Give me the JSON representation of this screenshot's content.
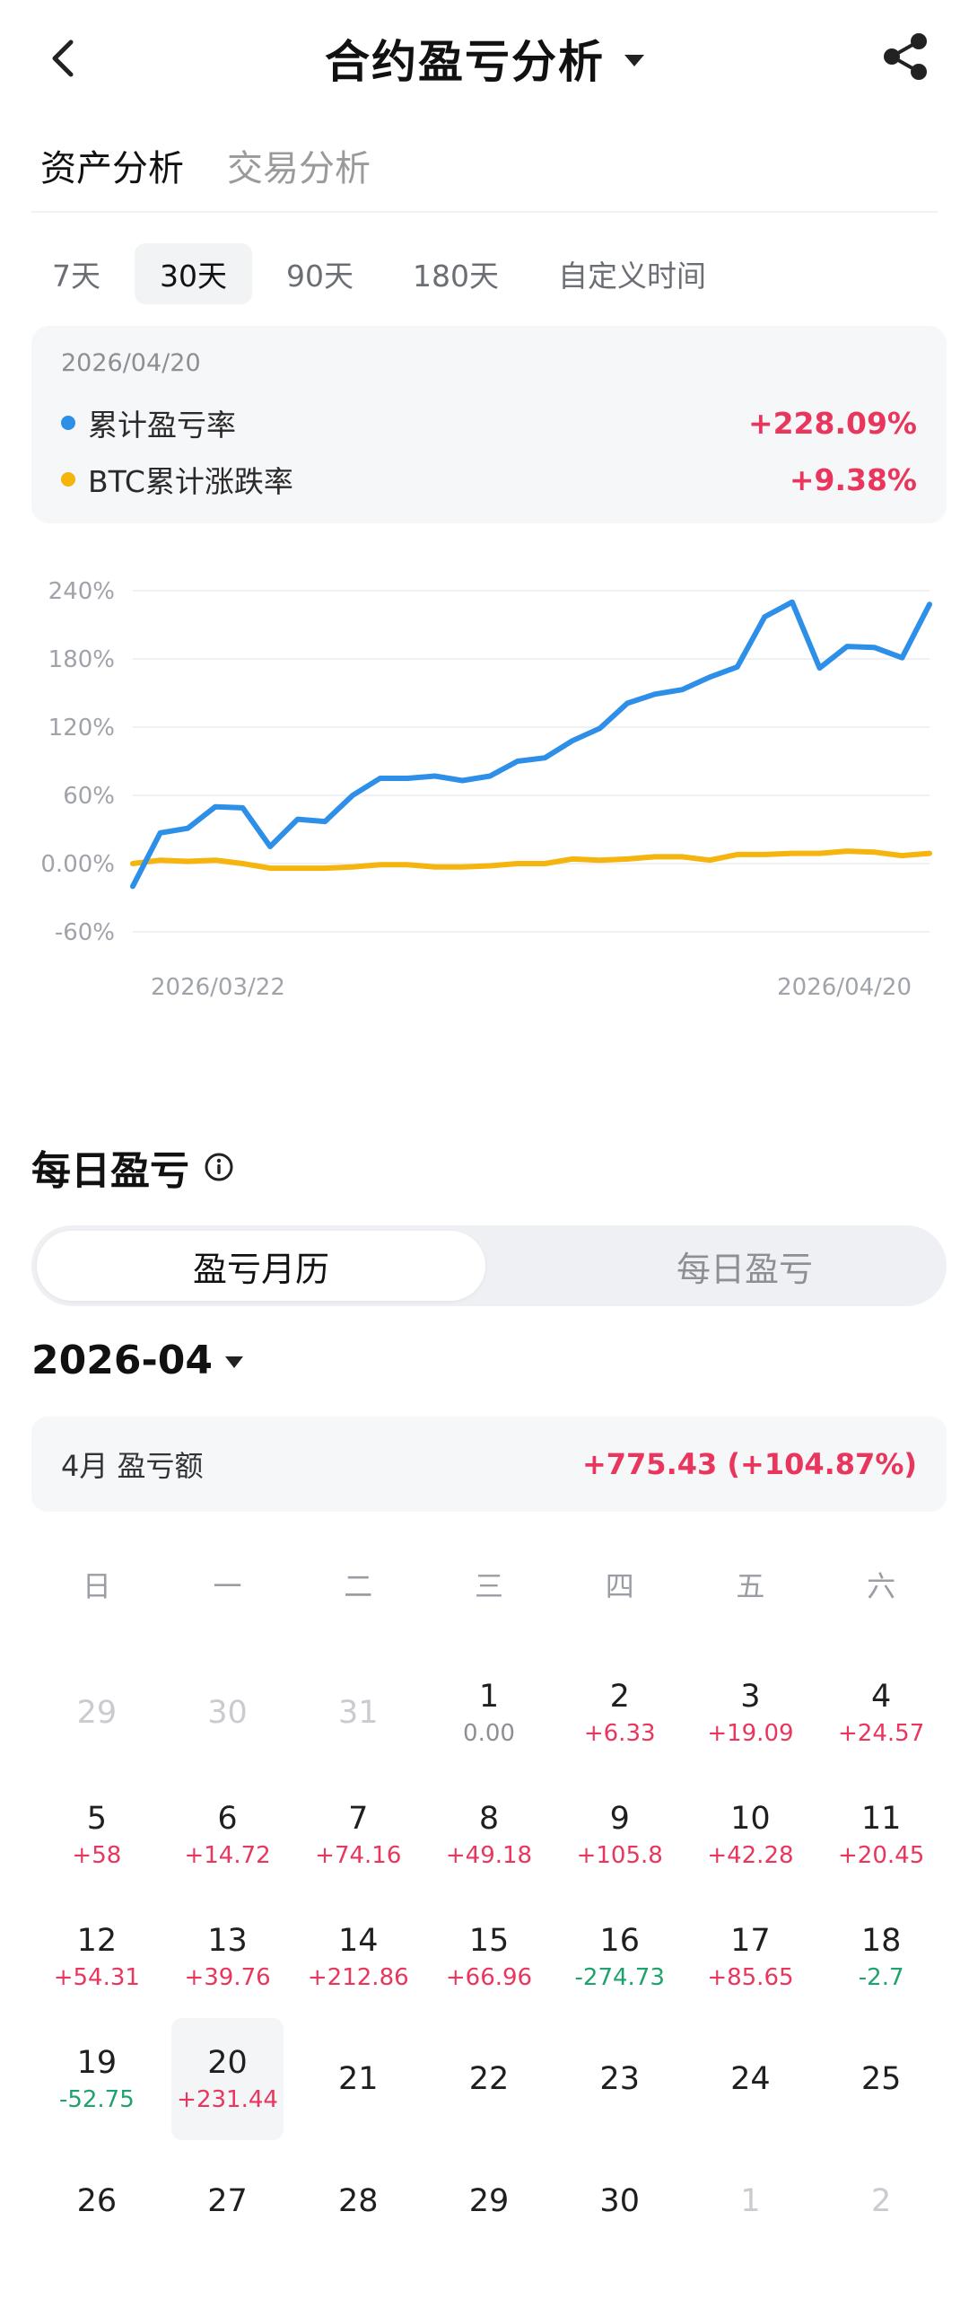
{
  "header": {
    "title": "合约盈亏分析"
  },
  "analysis_tabs": [
    {
      "label": "资产分析",
      "active": true
    },
    {
      "label": "交易分析",
      "active": false
    }
  ],
  "period_tabs": [
    {
      "label": "7天",
      "active": false
    },
    {
      "label": "30天",
      "active": true
    },
    {
      "label": "90天",
      "active": false
    },
    {
      "label": "180天",
      "active": false
    },
    {
      "label": "自定义时间",
      "active": false
    }
  ],
  "summary": {
    "date": "2026/04/20",
    "rows": [
      {
        "label": "累计盈亏率",
        "value": "+228.09%",
        "color": "#2e8fe8"
      },
      {
        "label": "BTC累计涨跌率",
        "value": "+9.38%",
        "color": "#f5b40e"
      }
    ]
  },
  "chart_data": {
    "type": "line",
    "y_ticks": [
      "240%",
      "180%",
      "120%",
      "60%",
      "0.00%",
      "-60%"
    ],
    "ylim": [
      -60,
      240
    ],
    "x_labels": [
      "2026/03/22",
      "2026/04/20"
    ],
    "series": [
      {
        "name": "累计盈亏率",
        "color": "#2e8fe8",
        "values": [
          -20,
          27,
          31,
          50,
          49,
          15,
          39,
          37,
          60,
          75,
          75,
          77,
          73,
          77,
          90,
          93,
          108,
          119,
          141,
          149,
          153,
          164,
          173,
          217,
          230,
          172,
          191,
          190,
          181,
          228
        ]
      },
      {
        "name": "BTC累计涨跌率",
        "color": "#f5b40e",
        "values": [
          0,
          3,
          2,
          3,
          0,
          -4,
          -4,
          -4,
          -3,
          -1,
          -1,
          -3,
          -3,
          -2,
          0,
          0,
          4,
          3,
          4,
          6,
          6,
          3,
          8,
          8,
          9,
          9,
          11,
          10,
          7,
          9
        ]
      }
    ]
  },
  "daily": {
    "title": "每日盈亏",
    "seg": [
      {
        "label": "盈亏月历",
        "active": true
      },
      {
        "label": "每日盈亏",
        "active": false
      }
    ],
    "month": "2026-04",
    "month_label": "4月 盈亏额",
    "month_value": "+775.43 (+104.87%)",
    "weekdays": [
      "日",
      "一",
      "二",
      "三",
      "四",
      "五",
      "六"
    ],
    "days": [
      {
        "d": "29",
        "other": true
      },
      {
        "d": "30",
        "other": true
      },
      {
        "d": "31",
        "other": true
      },
      {
        "d": "1",
        "p": "0.00",
        "s": "zero"
      },
      {
        "d": "2",
        "p": "+6.33",
        "s": "pos"
      },
      {
        "d": "3",
        "p": "+19.09",
        "s": "pos"
      },
      {
        "d": "4",
        "p": "+24.57",
        "s": "pos"
      },
      {
        "d": "5",
        "p": "+58",
        "s": "pos"
      },
      {
        "d": "6",
        "p": "+14.72",
        "s": "pos"
      },
      {
        "d": "7",
        "p": "+74.16",
        "s": "pos"
      },
      {
        "d": "8",
        "p": "+49.18",
        "s": "pos"
      },
      {
        "d": "9",
        "p": "+105.8",
        "s": "pos"
      },
      {
        "d": "10",
        "p": "+42.28",
        "s": "pos"
      },
      {
        "d": "11",
        "p": "+20.45",
        "s": "pos"
      },
      {
        "d": "12",
        "p": "+54.31",
        "s": "pos"
      },
      {
        "d": "13",
        "p": "+39.76",
        "s": "pos"
      },
      {
        "d": "14",
        "p": "+212.86",
        "s": "pos"
      },
      {
        "d": "15",
        "p": "+66.96",
        "s": "pos"
      },
      {
        "d": "16",
        "p": "-274.73",
        "s": "neg"
      },
      {
        "d": "17",
        "p": "+85.65",
        "s": "pos"
      },
      {
        "d": "18",
        "p": "-2.7",
        "s": "neg"
      },
      {
        "d": "19",
        "p": "-52.75",
        "s": "neg"
      },
      {
        "d": "20",
        "p": "+231.44",
        "s": "pos",
        "today": true
      },
      {
        "d": "21"
      },
      {
        "d": "22"
      },
      {
        "d": "23"
      },
      {
        "d": "24"
      },
      {
        "d": "25"
      },
      {
        "d": "26"
      },
      {
        "d": "27"
      },
      {
        "d": "28"
      },
      {
        "d": "29"
      },
      {
        "d": "30"
      },
      {
        "d": "1",
        "other": true
      },
      {
        "d": "2",
        "other": true
      }
    ]
  }
}
